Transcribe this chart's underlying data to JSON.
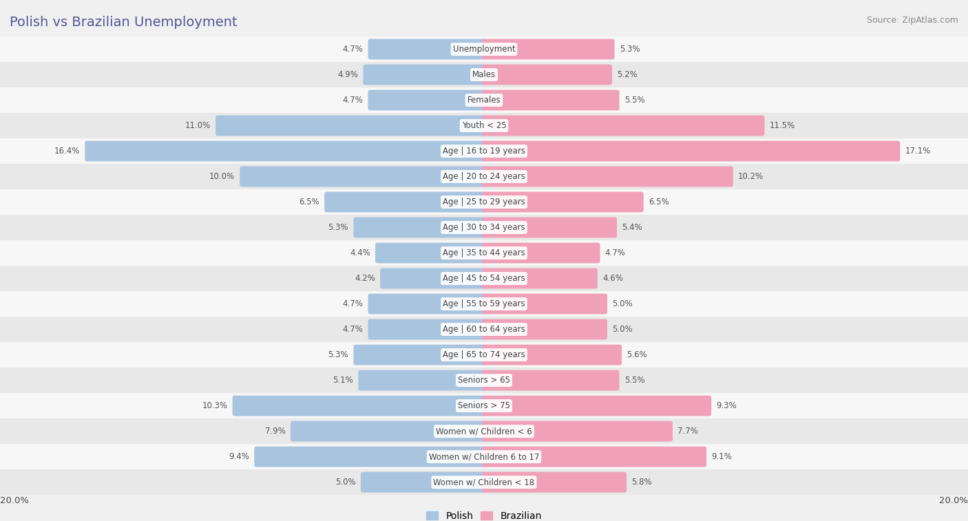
{
  "title": "Polish vs Brazilian Unemployment",
  "source": "Source: ZipAtlas.com",
  "categories": [
    "Unemployment",
    "Males",
    "Females",
    "Youth < 25",
    "Age | 16 to 19 years",
    "Age | 20 to 24 years",
    "Age | 25 to 29 years",
    "Age | 30 to 34 years",
    "Age | 35 to 44 years",
    "Age | 45 to 54 years",
    "Age | 55 to 59 years",
    "Age | 60 to 64 years",
    "Age | 65 to 74 years",
    "Seniors > 65",
    "Seniors > 75",
    "Women w/ Children < 6",
    "Women w/ Children 6 to 17",
    "Women w/ Children < 18"
  ],
  "polish": [
    4.7,
    4.9,
    4.7,
    11.0,
    16.4,
    10.0,
    6.5,
    5.3,
    4.4,
    4.2,
    4.7,
    4.7,
    5.3,
    5.1,
    10.3,
    7.9,
    9.4,
    5.0
  ],
  "brazilian": [
    5.3,
    5.2,
    5.5,
    11.5,
    17.1,
    10.2,
    6.5,
    5.4,
    4.7,
    4.6,
    5.0,
    5.0,
    5.6,
    5.5,
    9.3,
    7.7,
    9.1,
    5.8
  ],
  "polish_color": "#a8c4df",
  "brazilian_color": "#f0a0b8",
  "bar_height": 0.62,
  "bg_color": "#f0f0f0",
  "row_bg_even": "#f7f7f7",
  "row_bg_odd": "#e8e8e8",
  "axis_limit": 20.0,
  "legend_polish": "Polish",
  "legend_brazilian": "Brazilian",
  "title_color": "#555599",
  "label_fontsize": 8.5,
  "value_fontsize": 8.5,
  "title_fontsize": 14,
  "source_fontsize": 9
}
